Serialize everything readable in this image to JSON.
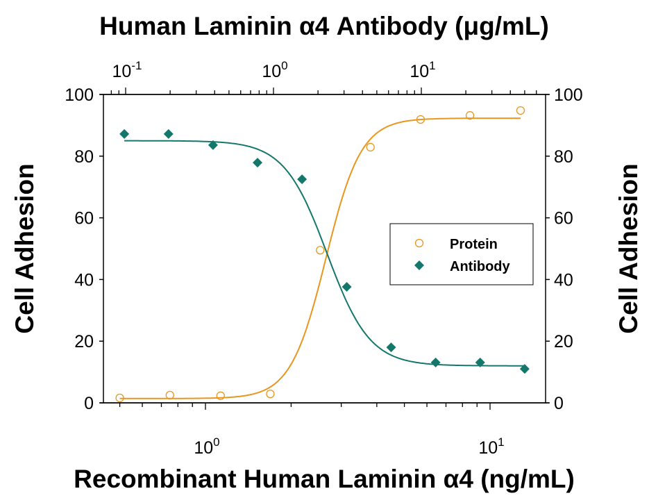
{
  "chart_data": {
    "type": "scatter",
    "top_title": "Human Laminin α4 Antibody (μg/mL)",
    "bottom_title": "Recombinant Human Laminin α4 (ng/mL)",
    "ylabel_left": "Cell Adhesion",
    "ylabel_right": "Cell Adhesion",
    "ylim": [
      0,
      100
    ],
    "yticks": [
      "0",
      "20",
      "40",
      "60",
      "80",
      "100"
    ],
    "x_bottom": {
      "scale": "log",
      "range": [
        0.45,
        14.6
      ],
      "tick_labels": [
        {
          "base": "10",
          "exp": "0",
          "value": 1
        },
        {
          "base": "10",
          "exp": "1",
          "value": 10
        }
      ]
    },
    "x_top": {
      "scale": "log",
      "range": [
        0.072,
        63
      ],
      "tick_labels": [
        {
          "base": "10",
          "exp": "-1",
          "value": 0.1
        },
        {
          "base": "10",
          "exp": "0",
          "value": 1
        },
        {
          "base": "10",
          "exp": "1",
          "value": 10
        }
      ]
    },
    "grid": false,
    "legend_placement": "center-right",
    "series": [
      {
        "name": "Protein",
        "axis": "bottom",
        "marker": "open-circle",
        "color": "#E8961E",
        "x": [
          0.5,
          0.75,
          1.13,
          1.69,
          2.53,
          3.8,
          5.7,
          8.5,
          12.8
        ],
        "y": [
          1.6,
          2.5,
          2.3,
          2.9,
          49.5,
          82.9,
          91.9,
          93.2,
          94.8
        ],
        "fit": {
          "model": "4PL",
          "bottom": 1.4,
          "top": 92.3,
          "ec50": 2.65,
          "hill": 7
        }
      },
      {
        "name": "Antibody",
        "axis": "top",
        "marker": "filled-diamond",
        "color": "#13776B",
        "x": [
          0.098,
          0.195,
          0.39,
          0.78,
          1.56,
          3.13,
          6.25,
          12.5,
          25,
          50
        ],
        "y": [
          87.2,
          87.2,
          83.6,
          77.9,
          72.5,
          37.6,
          18.0,
          13.1,
          13.1,
          11.0
        ],
        "fit": {
          "model": "4PL",
          "bottom": 12,
          "top": 85,
          "ec50": 2.3,
          "hill": 3
        }
      }
    ]
  }
}
